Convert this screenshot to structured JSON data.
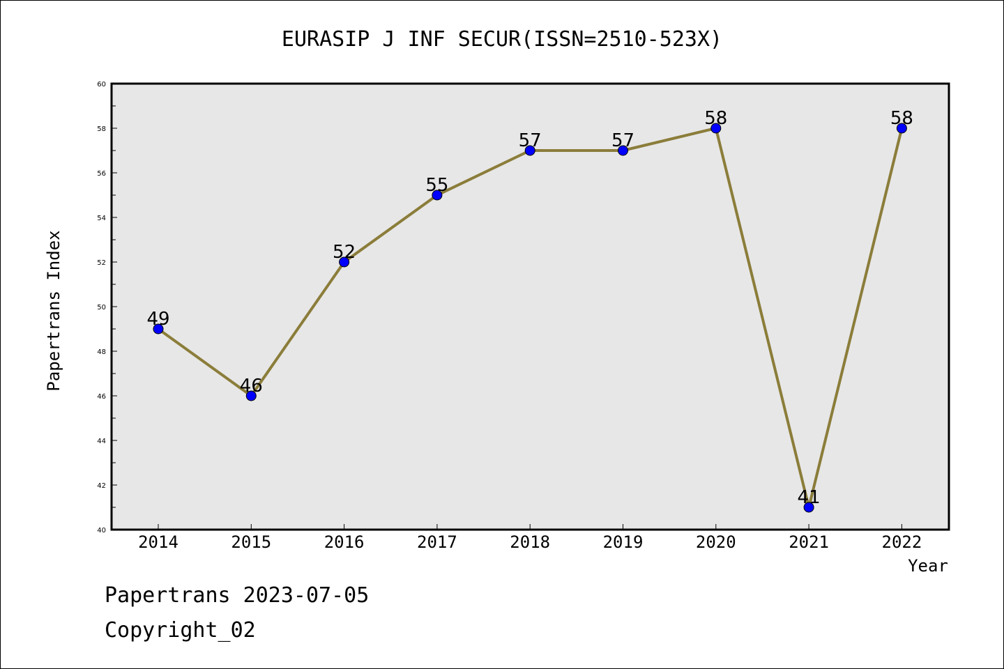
{
  "chart_data": {
    "type": "line",
    "title": "EURASIP J INF SECUR(ISSN=2510-523X)",
    "xlabel": "Year",
    "ylabel": "Papertrans Index",
    "categories": [
      "2014",
      "2015",
      "2016",
      "2017",
      "2018",
      "2019",
      "2020",
      "2021",
      "2022"
    ],
    "values": [
      49,
      46,
      52,
      55,
      57,
      57,
      58,
      41,
      58
    ],
    "ylim": [
      40,
      60
    ],
    "yticks": [
      "40",
      "42",
      "44",
      "46",
      "48",
      "50",
      "52",
      "54",
      "56",
      "58",
      "60"
    ],
    "grid": false,
    "line_color": "#8b7d3a",
    "marker_color": "#0000ff",
    "plot_background": "#e7e7e7"
  },
  "footer": {
    "line1": "Papertrans 2023-07-05",
    "line2": "Copyright_02"
  }
}
